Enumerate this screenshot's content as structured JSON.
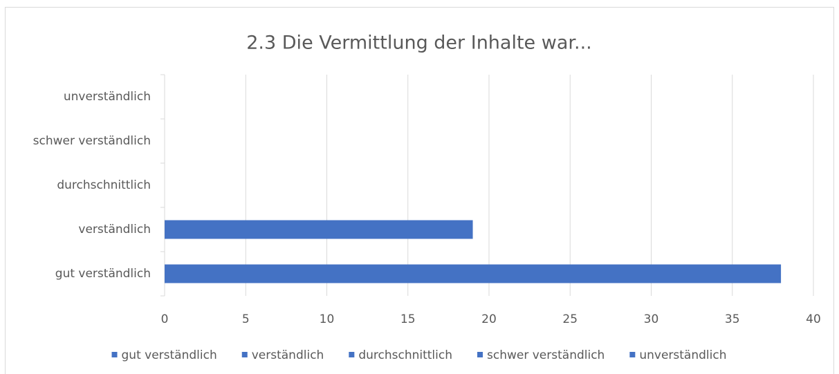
{
  "chart_data": {
    "type": "bar",
    "orientation": "horizontal",
    "title": "2.3 Die Vermittlung der Inhalte war...",
    "categories": [
      "gut verständlich",
      "verständlich",
      "durchschnittlich",
      "schwer verständlich",
      "unverständlich"
    ],
    "values": [
      38,
      19,
      0,
      0,
      0
    ],
    "color": "#4472c4",
    "xlim": [
      0,
      40
    ],
    "xticks": [
      0,
      5,
      10,
      15,
      20,
      25,
      30,
      35,
      40
    ],
    "grid": true,
    "legend": "bottom"
  }
}
